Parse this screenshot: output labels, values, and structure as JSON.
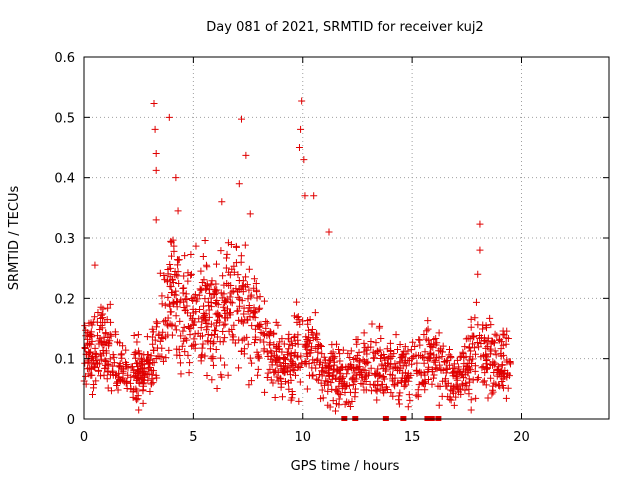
{
  "chart_data": {
    "type": "scatter",
    "title": "Day 081 of 2021, SRMTID for receiver kuj2",
    "xlabel": "GPS time / hours",
    "ylabel": "SRMTID / TECUs",
    "xlim": [
      0,
      24
    ],
    "ylim": [
      0,
      0.6
    ],
    "xticks": [
      0,
      5,
      10,
      15,
      20
    ],
    "xtick_labels": [
      "0",
      "5",
      "10",
      "15",
      "20"
    ],
    "yticks": [
      0,
      0.1,
      0.2,
      0.3,
      0.4,
      0.5,
      0.6
    ],
    "ytick_labels": [
      "0",
      "0.1",
      "0.2",
      "0.3",
      "0.4",
      "0.5",
      "0.6"
    ],
    "grid": true,
    "legend": "none",
    "marker": "+",
    "color": "#e00000",
    "x_range_of_data": [
      0.0,
      19.5
    ],
    "approximate_trend": {
      "x": [
        0,
        1,
        2,
        3,
        4,
        5,
        6,
        7,
        8,
        9,
        10,
        11,
        12,
        13,
        14,
        15,
        16,
        17,
        18,
        19
      ],
      "typical_y": [
        0.1,
        0.12,
        0.07,
        0.08,
        0.22,
        0.18,
        0.17,
        0.2,
        0.15,
        0.08,
        0.13,
        0.08,
        0.07,
        0.09,
        0.08,
        0.08,
        0.1,
        0.06,
        0.12,
        0.09
      ]
    },
    "notable_points": [
      {
        "x": 0.5,
        "y": 0.255
      },
      {
        "x": 3.2,
        "y": 0.523
      },
      {
        "x": 3.25,
        "y": 0.48
      },
      {
        "x": 3.3,
        "y": 0.44
      },
      {
        "x": 3.3,
        "y": 0.412
      },
      {
        "x": 3.3,
        "y": 0.33
      },
      {
        "x": 3.9,
        "y": 0.5
      },
      {
        "x": 4.2,
        "y": 0.4
      },
      {
        "x": 4.3,
        "y": 0.345
      },
      {
        "x": 7.2,
        "y": 0.497
      },
      {
        "x": 7.4,
        "y": 0.437
      },
      {
        "x": 7.1,
        "y": 0.39
      },
      {
        "x": 6.3,
        "y": 0.36
      },
      {
        "x": 7.6,
        "y": 0.34
      },
      {
        "x": 9.95,
        "y": 0.527
      },
      {
        "x": 9.9,
        "y": 0.48
      },
      {
        "x": 9.85,
        "y": 0.45
      },
      {
        "x": 10.05,
        "y": 0.43
      },
      {
        "x": 10.1,
        "y": 0.37
      },
      {
        "x": 10.5,
        "y": 0.37
      },
      {
        "x": 11.2,
        "y": 0.31
      },
      {
        "x": 18.1,
        "y": 0.323
      },
      {
        "x": 18.1,
        "y": 0.28
      },
      {
        "x": 18.0,
        "y": 0.24
      },
      {
        "x": 1.2,
        "y": 0.19
      },
      {
        "x": 2.5,
        "y": 0.015
      },
      {
        "x": 17.7,
        "y": 0.015
      }
    ],
    "data_gaps_markers_x": [
      11.9,
      12.4,
      13.8,
      14.6,
      15.7,
      15.9,
      16.2
    ]
  }
}
